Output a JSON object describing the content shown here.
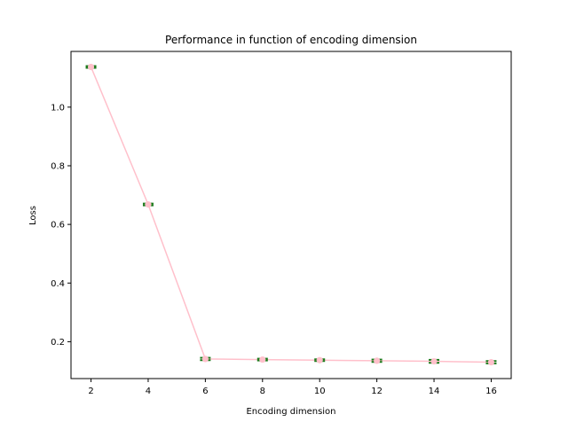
{
  "chart_data": {
    "type": "line",
    "title": "Performance in function of encoding dimension",
    "xlabel": "Encoding dimension",
    "ylabel": "Loss",
    "x": [
      2,
      4,
      6,
      8,
      10,
      12,
      14,
      16
    ],
    "series": [
      {
        "values": [
          1.137,
          0.668,
          0.141,
          0.139,
          0.137,
          0.135,
          0.133,
          0.13
        ],
        "error": [
          0.003,
          0.003,
          0.004,
          0.003,
          0.003,
          0.004,
          0.005,
          0.004
        ]
      }
    ],
    "xlim": [
      1.3,
      16.7
    ],
    "ylim": [
      0.0742,
      1.19
    ],
    "x_ticks": [
      "2",
      "4",
      "6",
      "8",
      "10",
      "12",
      "14",
      "16"
    ],
    "y_ticks": [
      "0.2",
      "0.4",
      "0.6",
      "0.8",
      "1.0"
    ],
    "grid": false,
    "colors": {
      "line": "#ffc0cb",
      "marker": "#ffc0cb",
      "error_bar": "#1a7a1a",
      "axes": "#000000"
    }
  }
}
